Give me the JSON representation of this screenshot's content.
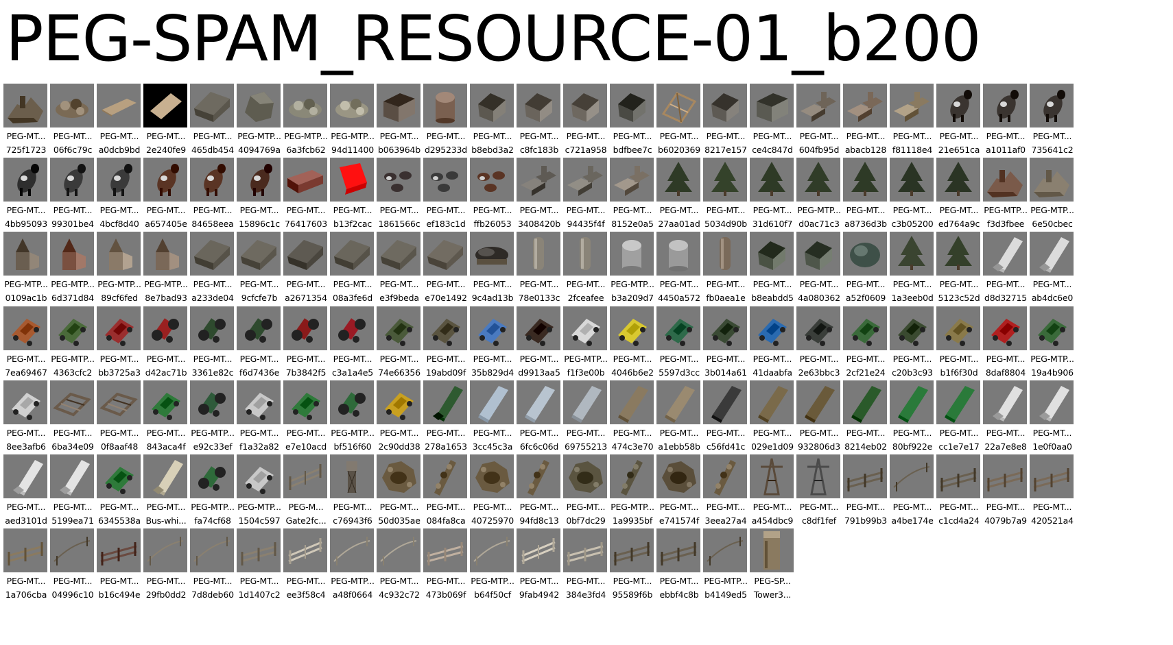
{
  "title": "PEG-SPAM_RESOURCE-01_b200",
  "rows": [
    [
      {
        "n": "PEG-MT...",
        "h": "725f1723",
        "icon": "ruins",
        "c": "#6b5e4c"
      },
      {
        "n": "PEG-MT...",
        "h": "06f6c79c",
        "icon": "rubble",
        "c": "#7a6a55"
      },
      {
        "n": "PEG-MT...",
        "h": "a0dcb9bd",
        "icon": "plank",
        "c": "#b8a080"
      },
      {
        "n": "PEG-MT...",
        "h": "2e240fe9",
        "icon": "plank-dark",
        "c": "#c8b090"
      },
      {
        "n": "PEG-MT...",
        "h": "465db454",
        "icon": "roof",
        "c": "#6e6a60"
      },
      {
        "n": "PEG-MTP...",
        "h": "4094769a",
        "icon": "rock",
        "c": "#5e5c50"
      },
      {
        "n": "PEG-MTP...",
        "h": "6a3fcb62",
        "icon": "rubble",
        "c": "#8a8878"
      },
      {
        "n": "PEG-MTP...",
        "h": "94d11400",
        "icon": "rubble",
        "c": "#9a9684"
      },
      {
        "n": "PEG-MT...",
        "h": "b063964b",
        "icon": "barn",
        "c": "#5a4e44"
      },
      {
        "n": "PEG-MT...",
        "h": "d295233d",
        "icon": "silo-round",
        "c": "#7a6050"
      },
      {
        "n": "PEG-MT...",
        "h": "b8ebd3a2",
        "icon": "house",
        "c": "#5c5850"
      },
      {
        "n": "PEG-MT...",
        "h": "c8fc183b",
        "icon": "house",
        "c": "#6a645c"
      },
      {
        "n": "PEG-MT...",
        "h": "c721a958",
        "icon": "house",
        "c": "#6e6860"
      },
      {
        "n": "PEG-MT...",
        "h": "bdfbee7c",
        "icon": "house",
        "c": "#4a4a44"
      },
      {
        "n": "PEG-MT...",
        "h": "b6020369",
        "icon": "frame",
        "c": "#a88860"
      },
      {
        "n": "PEG-MT...",
        "h": "8217e157",
        "icon": "house",
        "c": "#5e5a54"
      },
      {
        "n": "PEG-MT...",
        "h": "ce4c847d",
        "icon": "barn",
        "c": "#5a5a52"
      },
      {
        "n": "PEG-MT...",
        "h": "604fb95d",
        "icon": "farm",
        "c": "#6e6458"
      },
      {
        "n": "PEG-MT...",
        "h": "abacb128",
        "icon": "farm",
        "c": "#7a6858"
      },
      {
        "n": "PEG-MT...",
        "h": "f81118e4",
        "icon": "farm",
        "c": "#8a7a60"
      },
      {
        "n": "PEG-MT...",
        "h": "21e651ca",
        "icon": "cow",
        "c": "#3a3430"
      },
      {
        "n": "PEG-MT...",
        "h": "a1011af0",
        "icon": "cow",
        "c": "#3a3430"
      },
      {
        "n": "PEG-MT...",
        "h": "735641c2",
        "icon": "cow",
        "c": "#3a3430"
      }
    ],
    [
      {
        "n": "PEG-MT...",
        "h": "4bb95093",
        "icon": "cow",
        "c": "#2e2e2e"
      },
      {
        "n": "PEG-MT...",
        "h": "99301be4",
        "icon": "cow",
        "c": "#3a3a3a"
      },
      {
        "n": "PEG-MT...",
        "h": "4bcf8d40",
        "icon": "cow",
        "c": "#3a3a3a"
      },
      {
        "n": "PEG-MT...",
        "h": "a657405e",
        "icon": "cow",
        "c": "#5a3424"
      },
      {
        "n": "PEG-MT...",
        "h": "84658eea",
        "icon": "cow",
        "c": "#5a3424"
      },
      {
        "n": "PEG-MT...",
        "h": "15896c1c",
        "icon": "cow",
        "c": "#4a2a1e"
      },
      {
        "n": "PEG-MT...",
        "h": "76417603",
        "icon": "crate",
        "c": "#7a3a30"
      },
      {
        "n": "PEG-MT...",
        "h": "b13f2cac",
        "icon": "redbox",
        "c": "#ee0000"
      },
      {
        "n": "PEG-MT...",
        "h": "1861566c",
        "icon": "herd",
        "c": "#3a3030"
      },
      {
        "n": "PEG-MT...",
        "h": "ef183c1d",
        "icon": "herd",
        "c": "#3a3a3a"
      },
      {
        "n": "PEG-MT...",
        "h": "ffb26053",
        "icon": "herd",
        "c": "#5a3424"
      },
      {
        "n": "PEG-MT...",
        "h": "3408420b",
        "icon": "farm",
        "c": "#5e5a54"
      },
      {
        "n": "PEG-MT...",
        "h": "94435f4f",
        "icon": "farm",
        "c": "#6a665e"
      },
      {
        "n": "PEG-MT...",
        "h": "8152e0a5",
        "icon": "farm",
        "c": "#7a7064"
      },
      {
        "n": "PEG-MT...",
        "h": "27aa01ad",
        "icon": "tree",
        "c": "#2e3a26"
      },
      {
        "n": "PEG-MT...",
        "h": "5034d90b",
        "icon": "tree",
        "c": "#34422a"
      },
      {
        "n": "PEG-MT...",
        "h": "31d610f7",
        "icon": "tree",
        "c": "#2e3a26"
      },
      {
        "n": "PEG-MTP...",
        "h": "d0ac71c3",
        "icon": "tree",
        "c": "#303c28"
      },
      {
        "n": "PEG-MT...",
        "h": "a8736d3b",
        "icon": "tree",
        "c": "#2e3a26"
      },
      {
        "n": "PEG-MT...",
        "h": "c3b05200",
        "icon": "tree",
        "c": "#2a3424"
      },
      {
        "n": "PEG-MT...",
        "h": "ed764a9c",
        "icon": "tree",
        "c": "#2a3424"
      },
      {
        "n": "PEG-MTP...",
        "h": "f3d3fbee",
        "icon": "ruins",
        "c": "#7a5a4a"
      },
      {
        "n": "PEG-MTP...",
        "h": "6e50cbec",
        "icon": "ruins",
        "c": "#8a8070"
      }
    ],
    [
      {
        "n": "PEG-MTP...",
        "h": "0109ac1b",
        "icon": "church",
        "c": "#6a5e50"
      },
      {
        "n": "PEG-MTP...",
        "h": "6d371d84",
        "icon": "church",
        "c": "#7a5040"
      },
      {
        "n": "PEG-MTP...",
        "h": "89cf6fed",
        "icon": "church",
        "c": "#8a7a68"
      },
      {
        "n": "PEG-MTP...",
        "h": "8e7bad93",
        "icon": "church",
        "c": "#7a6858"
      },
      {
        "n": "PEG-MT...",
        "h": "a233de04",
        "icon": "roof",
        "c": "#6a665c"
      },
      {
        "n": "PEG-MT...",
        "h": "9cfcfe7b",
        "icon": "roof",
        "c": "#6e6a60"
      },
      {
        "n": "PEG-MT...",
        "h": "a2671354",
        "icon": "roof",
        "c": "#5e5a52"
      },
      {
        "n": "PEG-MT...",
        "h": "08a3fe6d",
        "icon": "roof",
        "c": "#6a665c"
      },
      {
        "n": "PEG-MT...",
        "h": "e3f9beda",
        "icon": "roof",
        "c": "#6e6a60"
      },
      {
        "n": "PEG-MT...",
        "h": "e70e1492",
        "icon": "roof",
        "c": "#726c62"
      },
      {
        "n": "PEG-MT...",
        "h": "9c4ad13b",
        "icon": "tank",
        "c": "#2e2a26"
      },
      {
        "n": "PEG-MT...",
        "h": "78e0133c",
        "icon": "silo",
        "c": "#8a8478"
      },
      {
        "n": "PEG-MT...",
        "h": "2fceafee",
        "icon": "silo",
        "c": "#8a8478"
      },
      {
        "n": "PEG-MTP...",
        "h": "b3a209d7",
        "icon": "silo-round",
        "c": "#a0a0a0"
      },
      {
        "n": "PEG-MT...",
        "h": "4450a572",
        "icon": "silo-round",
        "c": "#9a9a9a"
      },
      {
        "n": "PEG-MT...",
        "h": "fb0aea1e",
        "icon": "silo",
        "c": "#7a6a5a"
      },
      {
        "n": "PEG-MT...",
        "h": "b8eabdd5",
        "icon": "house",
        "c": "#4a5244"
      },
      {
        "n": "PEG-MT...",
        "h": "4a080362",
        "icon": "house",
        "c": "#4e564a"
      },
      {
        "n": "PEG-MT...",
        "h": "a52f0609",
        "icon": "bush",
        "c": "#3e5048"
      },
      {
        "n": "PEG-MT...",
        "h": "1a3eeb0d",
        "icon": "tree",
        "c": "#3a4430"
      },
      {
        "n": "PEG-MT...",
        "h": "5123c52d",
        "icon": "tree",
        "c": "#34402a"
      },
      {
        "n": "PEG-MT...",
        "h": "d8d32715",
        "icon": "truck",
        "c": "#dcdcdc"
      },
      {
        "n": "PEG-MT...",
        "h": "ab4dc6e0",
        "icon": "truck",
        "c": "#dcdcdc"
      }
    ],
    [
      {
        "n": "PEG-MT...",
        "h": "7ea69467",
        "icon": "car",
        "c": "#a85a30"
      },
      {
        "n": "PEG-MTP...",
        "h": "4363cfc2",
        "icon": "car",
        "c": "#4a6a3a"
      },
      {
        "n": "PEG-MT...",
        "h": "bb3725a3",
        "icon": "car",
        "c": "#9a2e2e"
      },
      {
        "n": "PEG-MT...",
        "h": "d42ac71b",
        "icon": "tractor",
        "c": "#9a2020"
      },
      {
        "n": "PEG-MT...",
        "h": "3361e82c",
        "icon": "tractor",
        "c": "#2e4a2e"
      },
      {
        "n": "PEG-MT...",
        "h": "f6d7436e",
        "icon": "tractor",
        "c": "#2e4a2e"
      },
      {
        "n": "PEG-MT...",
        "h": "7b3842f5",
        "icon": "tractor",
        "c": "#8a1a1a"
      },
      {
        "n": "PEG-MT...",
        "h": "c3a1a4e5",
        "icon": "tractor",
        "c": "#9a1a24"
      },
      {
        "n": "PEG-MT...",
        "h": "74e66356",
        "icon": "car",
        "c": "#4a5a3a"
      },
      {
        "n": "PEG-MT...",
        "h": "19abd09f",
        "icon": "car",
        "c": "#5a5440"
      },
      {
        "n": "PEG-MT...",
        "h": "35b829d4",
        "icon": "car",
        "c": "#4a7ac0"
      },
      {
        "n": "PEG-MT...",
        "h": "d9913aa5",
        "icon": "car",
        "c": "#3a2a22"
      },
      {
        "n": "PEG-MTP...",
        "h": "f1f3e00b",
        "icon": "car",
        "c": "#d8d8d8"
      },
      {
        "n": "PEG-MT...",
        "h": "4046b6e2",
        "icon": "car",
        "c": "#d8c830"
      },
      {
        "n": "PEG-MT...",
        "h": "5597d3cc",
        "icon": "car",
        "c": "#2e6a4a"
      },
      {
        "n": "PEG-MT...",
        "h": "3b014a61",
        "icon": "car",
        "c": "#3a4a34"
      },
      {
        "n": "PEG-MT...",
        "h": "41daabfa",
        "icon": "car",
        "c": "#2a6ab0"
      },
      {
        "n": "PEG-MT...",
        "h": "2e63bbc3",
        "icon": "car",
        "c": "#3a3e3a"
      },
      {
        "n": "PEG-MT...",
        "h": "2cf21e24",
        "icon": "car",
        "c": "#3a6a3a"
      },
      {
        "n": "PEG-MT...",
        "h": "c20b3c93",
        "icon": "car",
        "c": "#3a4a30"
      },
      {
        "n": "PEG-MT...",
        "h": "b1f6f30d",
        "icon": "car",
        "c": "#8a7a4a"
      },
      {
        "n": "PEG-MT...",
        "h": "8daf8804",
        "icon": "car",
        "c": "#b02020"
      },
      {
        "n": "PEG-MTP...",
        "h": "19a4b906",
        "icon": "car",
        "c": "#3a6a3a"
      }
    ],
    [
      {
        "n": "PEG-MT...",
        "h": "8ee3afb6",
        "icon": "car",
        "c": "#d0d0d0"
      },
      {
        "n": "PEG-MT...",
        "h": "6ba34e09",
        "icon": "wreck",
        "c": "#6a5a4a"
      },
      {
        "n": "PEG-MT...",
        "h": "0f8aaf48",
        "icon": "wreck",
        "c": "#6a5a4a"
      },
      {
        "n": "PEG-MT...",
        "h": "843aca4f",
        "icon": "car",
        "c": "#2e7a3a"
      },
      {
        "n": "PEG-MTP...",
        "h": "e92c33ef",
        "icon": "tractor",
        "c": "#2e5a3a"
      },
      {
        "n": "PEG-MT...",
        "h": "f1a32a82",
        "icon": "car",
        "c": "#c8c8c8"
      },
      {
        "n": "PEG-MT...",
        "h": "e7e10acd",
        "icon": "car",
        "c": "#2e7a3a"
      },
      {
        "n": "PEG-MTP...",
        "h": "bf516f60",
        "icon": "tractor",
        "c": "#2e6a3a"
      },
      {
        "n": "PEG-MT...",
        "h": "2c90dd38",
        "icon": "car",
        "c": "#c8a020"
      },
      {
        "n": "PEG-MT...",
        "h": "278a1653",
        "icon": "truck",
        "c": "#2e5a30"
      },
      {
        "n": "PEG-MT...",
        "h": "3cc45c3a",
        "icon": "trailer",
        "c": "#b0c0d0"
      },
      {
        "n": "PEG-MT...",
        "h": "6fc6c06d",
        "icon": "trailer",
        "c": "#b8c4d0"
      },
      {
        "n": "PEG-MT...",
        "h": "69755213",
        "icon": "trailer",
        "c": "#b0b8c0"
      },
      {
        "n": "PEG-MT...",
        "h": "474c3e70",
        "icon": "trailer",
        "c": "#8a7a60"
      },
      {
        "n": "PEG-MT...",
        "h": "a1ebb58b",
        "icon": "trailer",
        "c": "#9a8a70"
      },
      {
        "n": "PEG-MT...",
        "h": "c56fd41c",
        "icon": "trailer",
        "c": "#3a3a3a"
      },
      {
        "n": "PEG-MT...",
        "h": "029e1d09",
        "icon": "trailer",
        "c": "#7a6a4a"
      },
      {
        "n": "PEG-MT...",
        "h": "932806d3",
        "icon": "trailer",
        "c": "#6a5a3a"
      },
      {
        "n": "PEG-MT...",
        "h": "8214eb02",
        "icon": "trailer",
        "c": "#2a5a2a"
      },
      {
        "n": "PEG-MT...",
        "h": "80bf922e",
        "icon": "trailer",
        "c": "#2a7a3a"
      },
      {
        "n": "PEG-MT...",
        "h": "cc1e7e17",
        "icon": "trailer",
        "c": "#2a7a3a"
      },
      {
        "n": "PEG-MT...",
        "h": "22a7e8e8",
        "icon": "truck",
        "c": "#e0e0e0"
      },
      {
        "n": "PEG-MT...",
        "h": "1e0f0aa0",
        "icon": "truck",
        "c": "#e0e0e0"
      }
    ],
    [
      {
        "n": "PEG-MT...",
        "h": "aed3101d",
        "icon": "truck",
        "c": "#e4e4e4"
      },
      {
        "n": "PEG-MT...",
        "h": "5199ea71",
        "icon": "truck",
        "c": "#e4e4e4"
      },
      {
        "n": "PEG-MT...",
        "h": "6345538a",
        "icon": "car",
        "c": "#2e7a3a"
      },
      {
        "n": "PEG-MT...",
        "h": "Bus-whi...",
        "icon": "truck",
        "c": "#d8d0b8"
      },
      {
        "n": "PEG-MTP...",
        "h": "fa74cf68",
        "icon": "tractor",
        "c": "#2e6a3a"
      },
      {
        "n": "PEG-MTP...",
        "h": "1504c597",
        "icon": "car",
        "c": "#c8c8c8"
      },
      {
        "n": "PEG-M...",
        "h": "Gate2fc...",
        "icon": "gate",
        "c": "#8a8070"
      },
      {
        "n": "PEG-MT...",
        "h": "c76943f6",
        "icon": "tower",
        "c": "#5a5248"
      },
      {
        "n": "PEG-MT...",
        "h": "50d035ae",
        "icon": "crater",
        "c": "#6a5a40"
      },
      {
        "n": "PEG-MT...",
        "h": "084fa8ca",
        "icon": "debris",
        "c": "#6a5a40"
      },
      {
        "n": "PEG-MT...",
        "h": "40725970",
        "icon": "crater",
        "c": "#6a5a40"
      },
      {
        "n": "PEG-MT...",
        "h": "94fd8c13",
        "icon": "debris",
        "c": "#6a5a40"
      },
      {
        "n": "PEG-MT...",
        "h": "0bf7dc29",
        "icon": "crater",
        "c": "#5a5440"
      },
      {
        "n": "PEG-MTP...",
        "h": "1a9935bf",
        "icon": "debris",
        "c": "#5a5440"
      },
      {
        "n": "PEG-MT...",
        "h": "e741574f",
        "icon": "crater",
        "c": "#5a4e3a"
      },
      {
        "n": "PEG-MT...",
        "h": "3eea27a4",
        "icon": "debris",
        "c": "#6a5a40"
      },
      {
        "n": "PEG-MT...",
        "h": "a454dbc9",
        "icon": "pylon",
        "c": "#5a4a3a"
      },
      {
        "n": "PEG-MT...",
        "h": "c8df1fef",
        "icon": "pylon",
        "c": "#4a4a4a"
      },
      {
        "n": "PEG-MT...",
        "h": "791b99b3",
        "icon": "fence",
        "c": "#6a6050"
      },
      {
        "n": "PEG-MT...",
        "h": "a4be174e",
        "icon": "wire",
        "c": "#6a6050"
      },
      {
        "n": "PEG-MT...",
        "h": "c1cd4a24",
        "icon": "fence",
        "c": "#6a6050"
      },
      {
        "n": "PEG-MT...",
        "h": "4079b7a9",
        "icon": "fence",
        "c": "#7a6a58"
      },
      {
        "n": "PEG-MT...",
        "h": "420521a4",
        "icon": "fence",
        "c": "#7a6a58"
      }
    ],
    [
      {
        "n": "PEG-MT...",
        "h": "1a706cba",
        "icon": "fence",
        "c": "#8a7a60"
      },
      {
        "n": "PEG-MT...",
        "h": "04996c10",
        "icon": "wire",
        "c": "#6a6050"
      },
      {
        "n": "PEG-MT...",
        "h": "b16c494e",
        "icon": "fence",
        "c": "#6a4a40"
      },
      {
        "n": "PEG-MT...",
        "h": "29fb0dd2",
        "icon": "wire",
        "c": "#8a8070"
      },
      {
        "n": "PEG-MT...",
        "h": "7d8deb60",
        "icon": "wire",
        "c": "#8a8070"
      },
      {
        "n": "PEG-MT...",
        "h": "1d1407c2",
        "icon": "fence",
        "c": "#8a8070"
      },
      {
        "n": "PEG-MT...",
        "h": "ee3f58c4",
        "icon": "gate",
        "c": "#d0c8b8"
      },
      {
        "n": "PEG-MTP...",
        "h": "a48f0664",
        "icon": "wire",
        "c": "#b0a898"
      },
      {
        "n": "PEG-MT...",
        "h": "4c932c72",
        "icon": "wire",
        "c": "#b0a898"
      },
      {
        "n": "PEG-MT...",
        "h": "473b069f",
        "icon": "fence",
        "c": "#c0b0a0"
      },
      {
        "n": "PEG-MTP...",
        "h": "b64f50cf",
        "icon": "wire",
        "c": "#b0a898"
      },
      {
        "n": "PEG-MT...",
        "h": "9fab4942",
        "icon": "gate",
        "c": "#d8d0c0"
      },
      {
        "n": "PEG-MT...",
        "h": "384e3fd4",
        "icon": "fence",
        "c": "#c8c0b0"
      },
      {
        "n": "PEG-MT...",
        "h": "95589f6b",
        "icon": "fence",
        "c": "#6a6050"
      },
      {
        "n": "PEG-MT...",
        "h": "ebbf4c8b",
        "icon": "fence",
        "c": "#6a6050"
      },
      {
        "n": "PEG-MTP...",
        "h": "b4149ed5",
        "icon": "wire",
        "c": "#6a6050"
      },
      {
        "n": "PEG-SP...",
        "h": "Tower3...",
        "icon": "tower-tall",
        "c": "#8a7a60"
      }
    ]
  ]
}
